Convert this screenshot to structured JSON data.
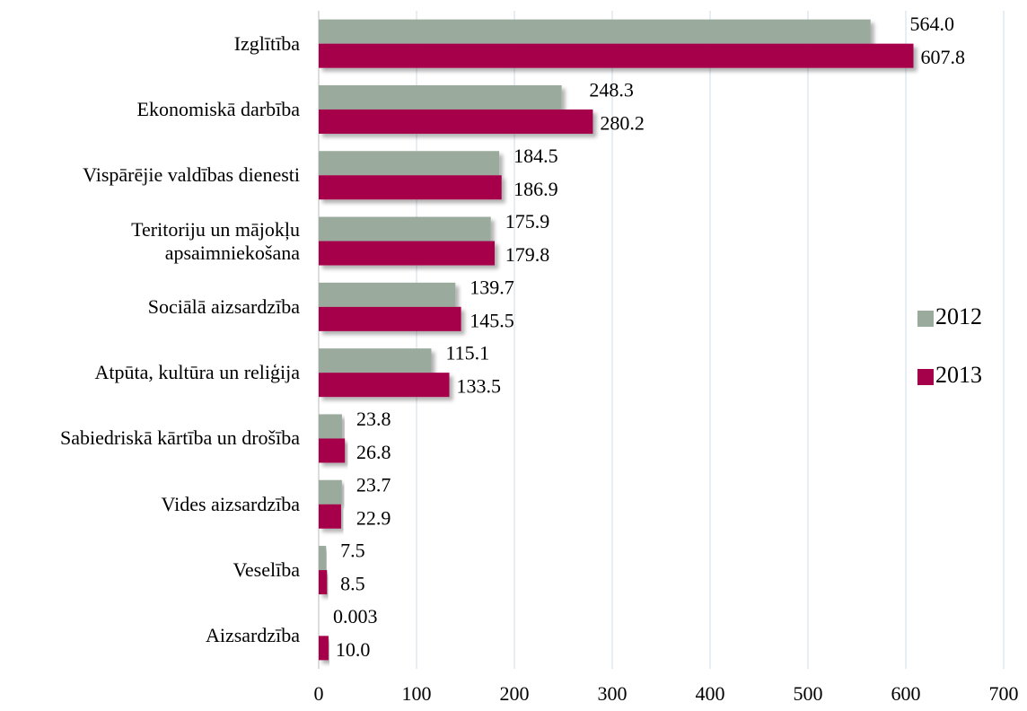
{
  "chart_data": {
    "type": "bar",
    "orientation": "horizontal",
    "categories": [
      "Izglītība",
      "Ekonomiskā darbība",
      "Vispārējie valdības dienesti",
      "Teritoriju un mājokļu\napsaimniekošana",
      "Sociālā aizsardzība",
      "Atpūta, kultūra un reliģija",
      "Sabiedriskā kārtība un drošība",
      "Vides aizsardzība",
      "Veselība",
      "Aizsardzība"
    ],
    "series": [
      {
        "name": "2012",
        "color": "#9aaa9c",
        "values": [
          564.0,
          248.3,
          184.5,
          175.9,
          139.7,
          115.1,
          23.8,
          23.7,
          7.5,
          0.003
        ],
        "value_labels": [
          "564.0",
          "248.3",
          "184.5",
          "175.9",
          "139.7",
          "115.1",
          "23.8",
          "23.7",
          "7.5",
          "0.003"
        ]
      },
      {
        "name": "2013",
        "color": "#a5004a",
        "values": [
          607.8,
          280.2,
          186.9,
          179.8,
          145.5,
          133.5,
          26.8,
          22.9,
          8.5,
          10.0
        ],
        "value_labels": [
          "607.8",
          "280.2",
          "186.9",
          "179.8",
          "145.5",
          "133.5",
          "26.8",
          "22.9",
          "8.5",
          "10.0"
        ]
      }
    ],
    "xlim": [
      0,
      700
    ],
    "xticks": [
      0,
      100,
      200,
      300,
      400,
      500,
      600,
      700
    ],
    "grid": true,
    "legend": "right"
  }
}
